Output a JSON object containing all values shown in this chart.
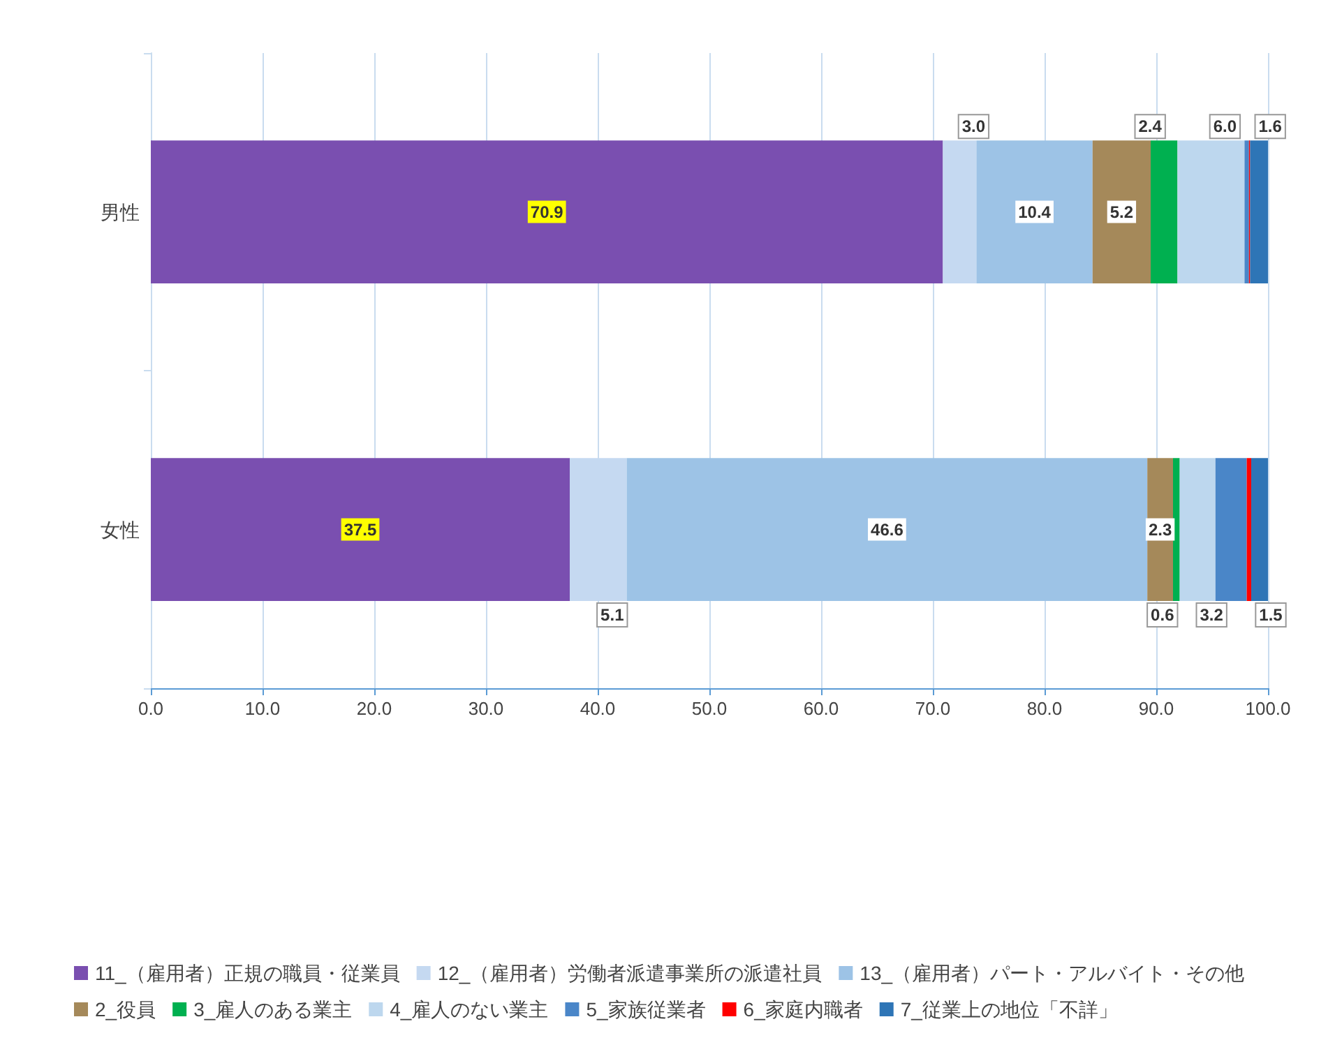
{
  "chart_data": {
    "type": "bar",
    "orientation": "horizontal",
    "stacked": true,
    "categories": [
      "男性",
      "女性"
    ],
    "xlim": [
      0,
      100
    ],
    "xticks": [
      {
        "value": 0,
        "label": "0.0"
      },
      {
        "value": 10,
        "label": "10.0"
      },
      {
        "value": 20,
        "label": "20.0"
      },
      {
        "value": 30,
        "label": "30.0"
      },
      {
        "value": 40,
        "label": "40.0"
      },
      {
        "value": 50,
        "label": "50.0"
      },
      {
        "value": 60,
        "label": "60.0"
      },
      {
        "value": 70,
        "label": "70.0"
      },
      {
        "value": 80,
        "label": "80.0"
      },
      {
        "value": 90,
        "label": "90.0"
      },
      {
        "value": 100,
        "label": "100.0"
      }
    ],
    "grid": "x",
    "legend": "bottom",
    "series": [
      {
        "name": "11_（雇用者）正規の職員・従業員",
        "color": "#7a4fb0",
        "values": [
          70.9,
          37.5
        ],
        "value_labels": [
          "70.9",
          "37.5"
        ]
      },
      {
        "name": "12_（雇用者）労働者派遣事業所の派遣社員",
        "color": "#c5d9f1",
        "values": [
          3.0,
          5.1
        ],
        "value_labels": [
          "3.0",
          "5.1"
        ]
      },
      {
        "name": "13_（雇用者）パート・アルバイト・その他",
        "color": "#9dc3e6",
        "values": [
          10.4,
          46.6
        ],
        "value_labels": [
          "10.4",
          "46.6"
        ]
      },
      {
        "name": "2_役員",
        "color": "#a5895a",
        "values": [
          5.2,
          2.3
        ],
        "value_labels": [
          "5.2",
          "2.3"
        ]
      },
      {
        "name": "3_雇人のある業主",
        "color": "#00b050",
        "values": [
          2.4,
          0.6
        ],
        "value_labels": [
          "2.4",
          "0.6"
        ]
      },
      {
        "name": "4_雇人のない業主",
        "color": "#bdd7ee",
        "values": [
          6.0,
          3.2
        ],
        "value_labels": [
          "6.0",
          "3.2"
        ]
      },
      {
        "name": "5_家族従業者",
        "color": "#4a86c8",
        "values": [
          0.4,
          2.8
        ],
        "value_labels": [
          null,
          null
        ]
      },
      {
        "name": "6_家庭内職者",
        "color": "#ff0000",
        "values": [
          0.1,
          0.4
        ],
        "value_labels": [
          null,
          null
        ]
      },
      {
        "name": "7_従業上の地位「不詳」",
        "color": "#2e75b6",
        "values": [
          1.6,
          1.5
        ],
        "value_labels": [
          "1.6",
          "1.5"
        ]
      }
    ]
  }
}
